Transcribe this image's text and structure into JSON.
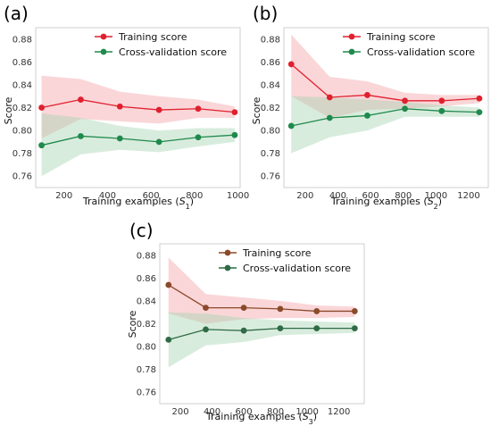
{
  "panels": [
    {
      "label": "(a)",
      "xlabel_main": "Training examples (",
      "xlabel_var": "S",
      "xlabel_sub": "1",
      "xlabel_end": ")",
      "ylabel": "Score"
    },
    {
      "label": "(b)",
      "xlabel_main": "Training examples (",
      "xlabel_var": "S",
      "xlabel_sub": "2",
      "xlabel_end": ")",
      "ylabel": "Score"
    },
    {
      "label": "(c)",
      "xlabel_main": "Training examples (",
      "xlabel_var": "S",
      "xlabel_sub": "3",
      "xlabel_end": ")",
      "ylabel": "Score"
    }
  ],
  "chart_data": [
    {
      "type": "line",
      "panel_label": "(a)",
      "xlabel": "Training examples (S1)",
      "ylabel": "Score",
      "xlim": [
        70,
        1010
      ],
      "ylim": [
        0.75,
        0.89
      ],
      "xticks": [
        200,
        400,
        600,
        800,
        1000
      ],
      "yticks": [
        0.76,
        0.78,
        0.8,
        0.82,
        0.84,
        0.86,
        0.88
      ],
      "legend_position": "top-right",
      "grid": false,
      "series": [
        {
          "name": "Training score",
          "color": "#e0202e",
          "band_color": "#f4a3a8",
          "x": [
            97,
            277,
            457,
            637,
            817,
            985
          ],
          "y": [
            0.82,
            0.827,
            0.821,
            0.818,
            0.819,
            0.816
          ],
          "upper": [
            0.848,
            0.845,
            0.834,
            0.83,
            0.827,
            0.821
          ],
          "lower": [
            0.793,
            0.81,
            0.808,
            0.806,
            0.811,
            0.811
          ]
        },
        {
          "name": "Cross-validation score",
          "color": "#1f8a4c",
          "band_color": "#a8d5b4",
          "x": [
            97,
            277,
            457,
            637,
            817,
            985
          ],
          "y": [
            0.787,
            0.795,
            0.793,
            0.79,
            0.794,
            0.796
          ],
          "upper": [
            0.815,
            0.811,
            0.804,
            0.8,
            0.802,
            0.802
          ],
          "lower": [
            0.76,
            0.779,
            0.783,
            0.781,
            0.786,
            0.79
          ]
        }
      ]
    },
    {
      "type": "line",
      "panel_label": "(b)",
      "xlabel": "Training examples (S2)",
      "ylabel": "Score",
      "xlim": [
        70,
        1320
      ],
      "ylim": [
        0.75,
        0.89
      ],
      "xticks": [
        200,
        400,
        600,
        800,
        1000,
        1200
      ],
      "yticks": [
        0.76,
        0.78,
        0.8,
        0.82,
        0.84,
        0.86,
        0.88
      ],
      "legend_position": "top-right",
      "grid": false,
      "series": [
        {
          "name": "Training score",
          "color": "#e0202e",
          "band_color": "#f4a3a8",
          "x": [
            115,
            350,
            580,
            810,
            1035,
            1265
          ],
          "y": [
            0.858,
            0.829,
            0.831,
            0.826,
            0.826,
            0.828
          ],
          "upper": [
            0.884,
            0.847,
            0.843,
            0.833,
            0.831,
            0.831
          ],
          "lower": [
            0.83,
            0.811,
            0.818,
            0.819,
            0.821,
            0.824
          ]
        },
        {
          "name": "Cross-validation score",
          "color": "#1f8a4c",
          "band_color": "#a8d5b4",
          "x": [
            115,
            350,
            580,
            810,
            1035,
            1265
          ],
          "y": [
            0.804,
            0.811,
            0.813,
            0.819,
            0.817,
            0.816
          ],
          "upper": [
            0.83,
            0.829,
            0.827,
            0.825,
            0.822,
            0.82
          ],
          "lower": [
            0.78,
            0.794,
            0.8,
            0.812,
            0.812,
            0.812
          ]
        }
      ]
    },
    {
      "type": "line",
      "panel_label": "(c)",
      "xlabel": "Training examples (S3)",
      "ylabel": "Score",
      "xlim": [
        70,
        1360
      ],
      "ylim": [
        0.75,
        0.89
      ],
      "xticks": [
        200,
        400,
        600,
        800,
        1000,
        1200
      ],
      "yticks": [
        0.76,
        0.78,
        0.8,
        0.82,
        0.84,
        0.86,
        0.88
      ],
      "legend_position": "top-right",
      "grid": false,
      "series": [
        {
          "name": "Training score",
          "color": "#8b4a2a",
          "band_color": "#f4a3a8",
          "x": [
            125,
            360,
            600,
            830,
            1060,
            1300
          ],
          "y": [
            0.854,
            0.834,
            0.834,
            0.833,
            0.831,
            0.831
          ],
          "upper": [
            0.878,
            0.846,
            0.843,
            0.84,
            0.836,
            0.835
          ],
          "lower": [
            0.829,
            0.82,
            0.824,
            0.825,
            0.825,
            0.826
          ]
        },
        {
          "name": "Cross-validation score",
          "color": "#2f6b45",
          "band_color": "#a8d5b4",
          "x": [
            125,
            360,
            600,
            830,
            1060,
            1300
          ],
          "y": [
            0.806,
            0.815,
            0.814,
            0.816,
            0.816,
            0.816
          ],
          "upper": [
            0.83,
            0.829,
            0.825,
            0.823,
            0.822,
            0.821
          ],
          "lower": [
            0.782,
            0.801,
            0.804,
            0.81,
            0.811,
            0.812
          ]
        }
      ]
    }
  ]
}
